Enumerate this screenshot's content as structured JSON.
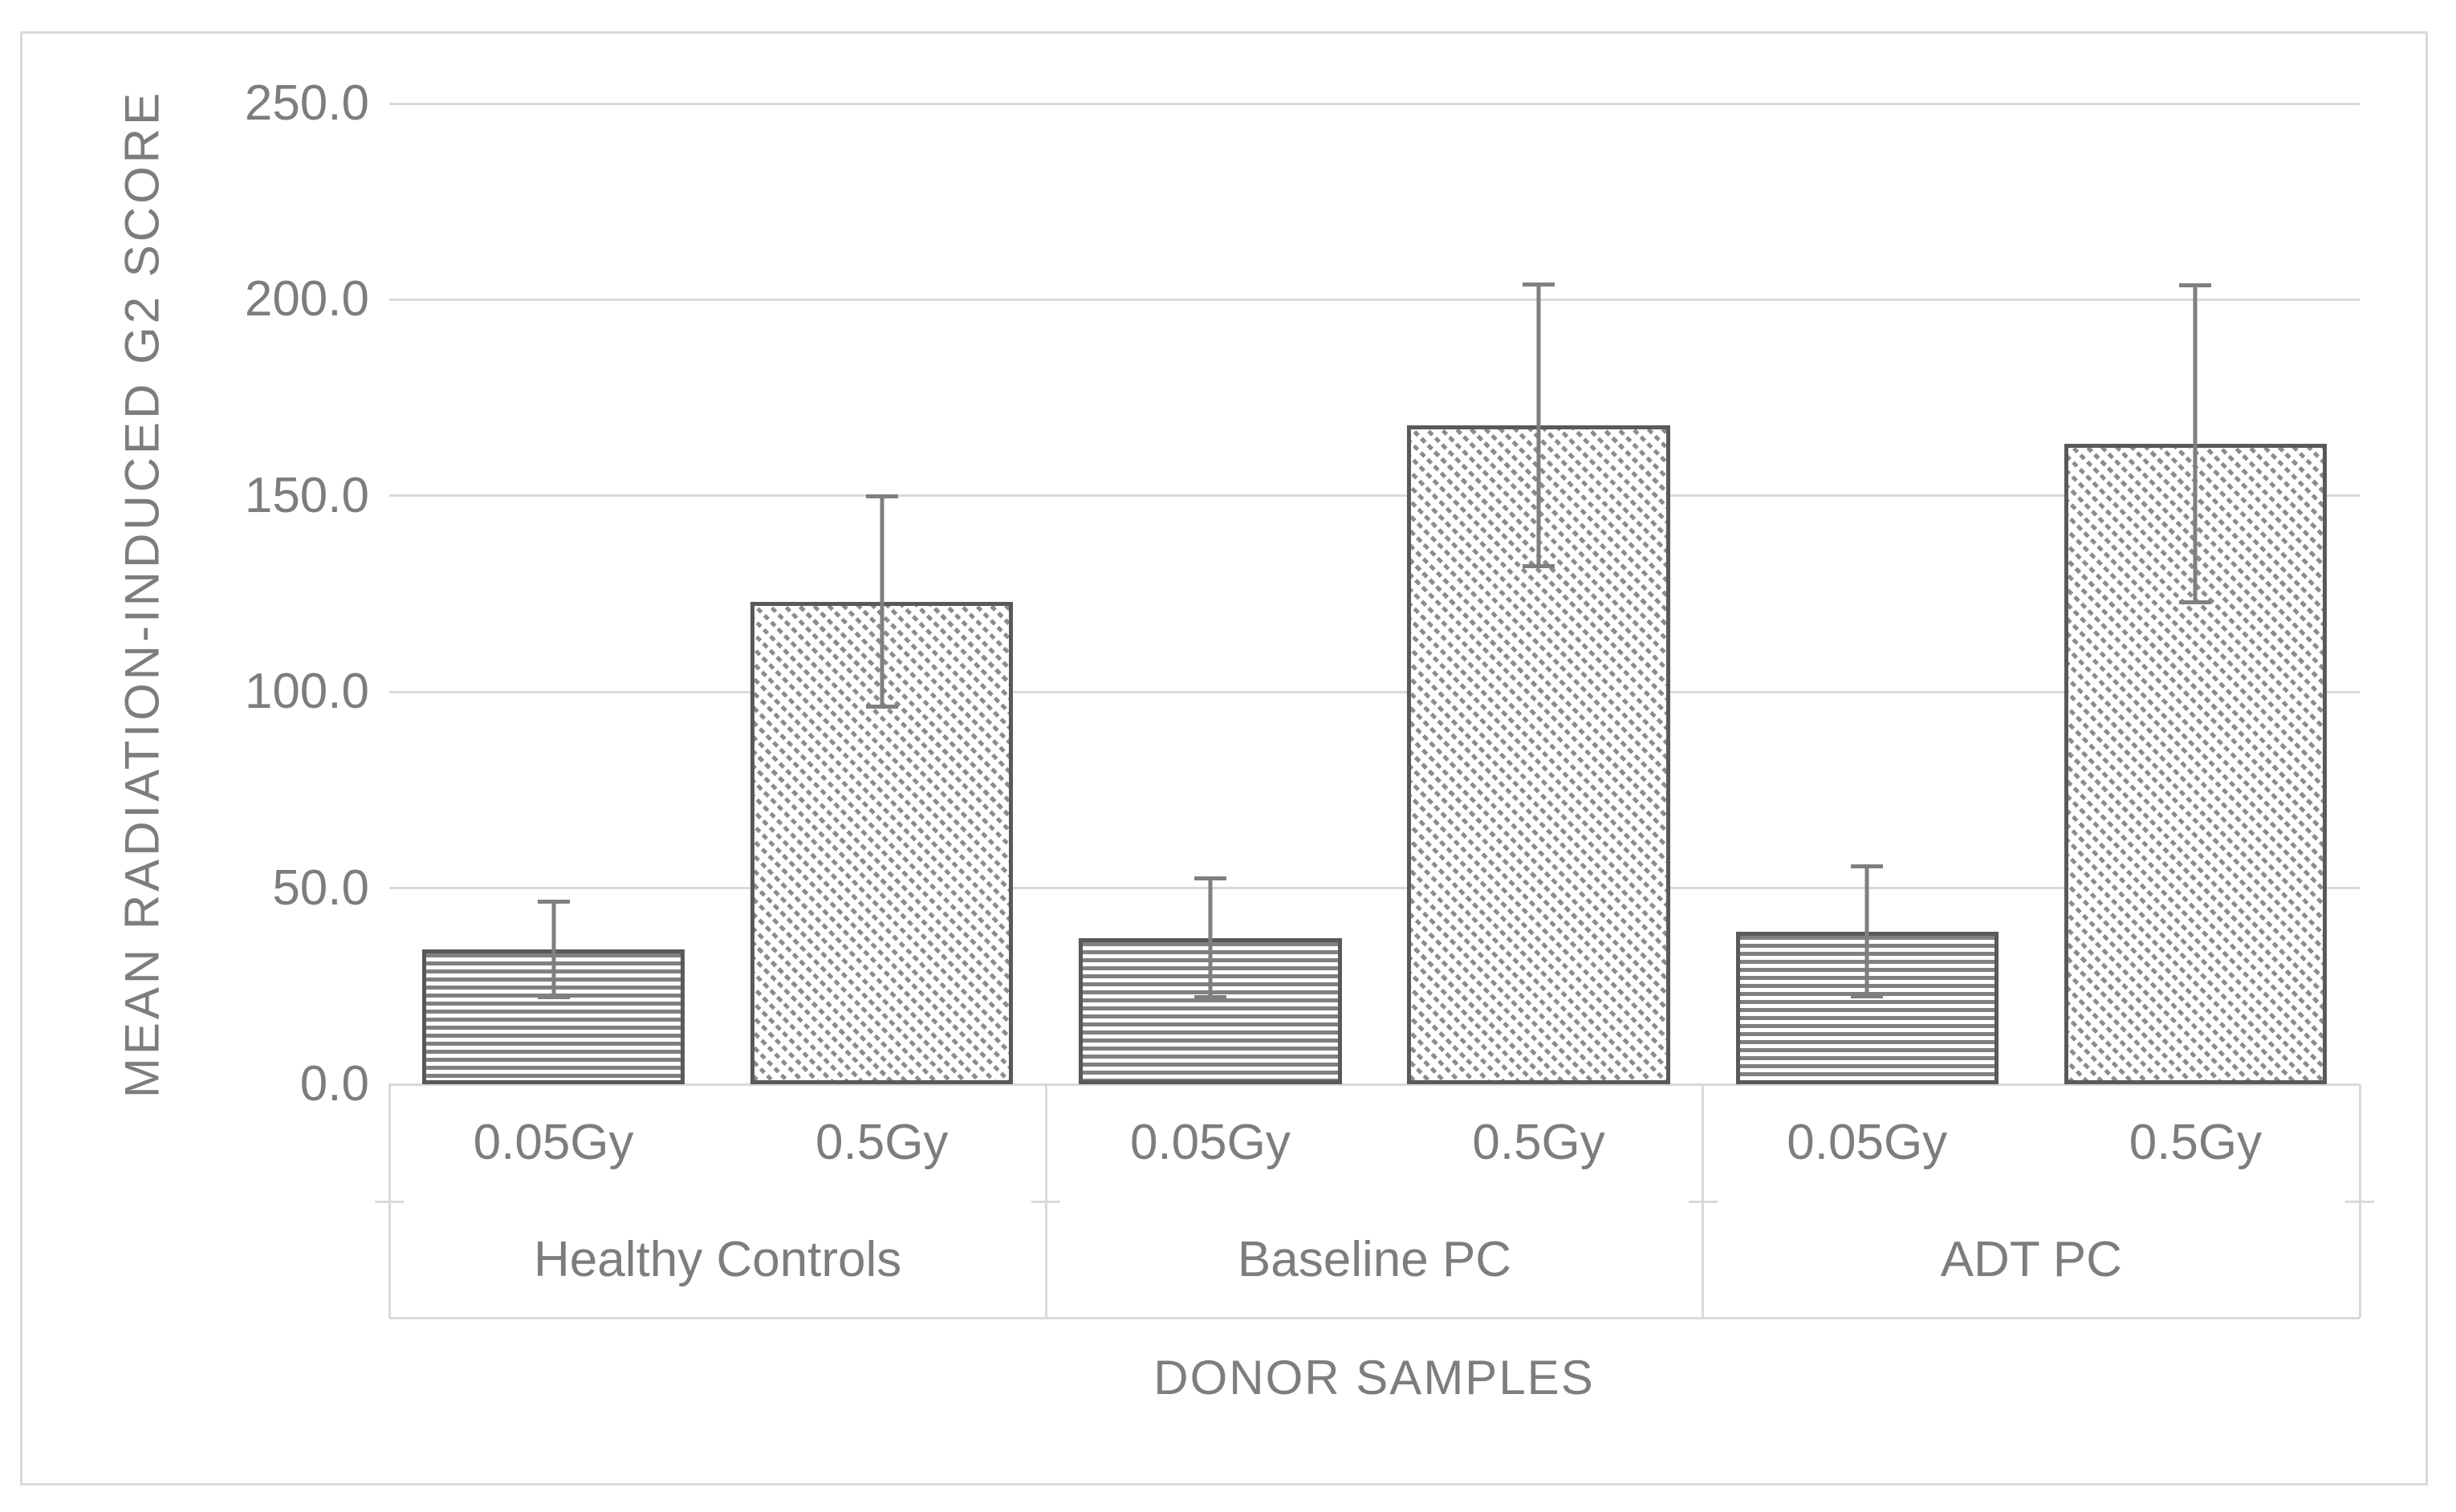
{
  "chart_data": {
    "type": "bar",
    "title": "",
    "xlabel": "DONOR SAMPLES",
    "ylabel": "MEAN RADIATION-INDUCED G2 SCORE",
    "ylim": [
      0,
      250
    ],
    "ytick_step": 50,
    "ytick_labels": [
      "0.0",
      "50.0",
      "100.0",
      "150.0",
      "200.0",
      "250.0"
    ],
    "grid": true,
    "legend_position": "none",
    "groups": [
      "Healthy Controls",
      "Baseline PC",
      "ADT PC"
    ],
    "series": [
      {
        "name": "0.05Gy",
        "pattern": "horizontal-stripes",
        "values": [
          34.4,
          37.3,
          38.9
        ],
        "error_plus": [
          12.7,
          15.6,
          17.1
        ],
        "error_minus": [
          12.7,
          15.6,
          17.1
        ]
      },
      {
        "name": "0.5Gy",
        "pattern": "dashed-diagonal-hatch",
        "values": [
          123.0,
          168.0,
          163.2
        ],
        "error_plus": [
          27.3,
          36.4,
          40.9
        ],
        "error_minus": [
          27.3,
          36.4,
          40.9
        ]
      }
    ],
    "colors": {
      "text": "#7d7d7d",
      "gridline": "#d9d9d9",
      "frame_border": "#d9d9d9",
      "bar_border": "#595959",
      "horizontal_stripe": "#808080",
      "diagonal_hatch": "#8c8c8c",
      "error_bar": "#7f7f7f",
      "background": "#ffffff"
    }
  }
}
